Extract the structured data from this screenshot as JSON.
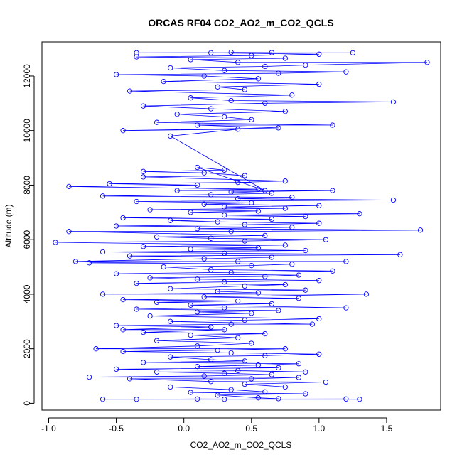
{
  "chart_data": {
    "type": "scatter",
    "title": "ORCAS RF04 CO2_AO2_m_CO2_QCLS",
    "xlabel": "CO2_AO2_m_CO2_QCLS",
    "ylabel": "Altitude (m)",
    "xlim": [
      -1.05,
      1.9
    ],
    "ylim": [
      -250,
      13250
    ],
    "xticks": [
      -1.0,
      -0.5,
      0.0,
      0.5,
      1.0,
      1.5
    ],
    "xtick_labels": [
      "-1.0",
      "-0.5",
      "0.0",
      "0.5",
      "1.0",
      "1.5"
    ],
    "yticks": [
      0,
      2000,
      4000,
      6000,
      8000,
      10000,
      12000
    ],
    "ytick_labels": [
      "0",
      "2000",
      "4000",
      "6000",
      "8000",
      "10000",
      "12000"
    ],
    "grid": false,
    "series": [
      {
        "color": "#0000ff",
        "marker": "open-circle",
        "connected": true,
        "points": [
          [
            -0.6,
            150
          ],
          [
            1.3,
            150
          ],
          [
            0.1,
            160
          ],
          [
            -0.35,
            150
          ],
          [
            1.2,
            160
          ],
          [
            0.3,
            150
          ],
          [
            0.7,
            170
          ],
          [
            0.55,
            200
          ],
          [
            0.25,
            300
          ],
          [
            0.9,
            350
          ],
          [
            0.05,
            400
          ],
          [
            0.6,
            420
          ],
          [
            0.35,
            500
          ],
          [
            -0.1,
            600
          ],
          [
            0.75,
            600
          ],
          [
            0.45,
            700
          ],
          [
            1.05,
            780
          ],
          [
            0.2,
            800
          ],
          [
            -0.4,
            900
          ],
          [
            0.5,
            900
          ],
          [
            0.85,
            950
          ],
          [
            -0.7,
            960
          ],
          [
            0.15,
            1000
          ],
          [
            0.65,
            1050
          ],
          [
            0.3,
            1100
          ],
          [
            -0.2,
            1150
          ],
          [
            0.9,
            1150
          ],
          [
            0.4,
            1200
          ],
          [
            -0.5,
            1250
          ],
          [
            0.7,
            1300
          ],
          [
            0.1,
            1350
          ],
          [
            0.55,
            1400
          ],
          [
            0.85,
            1450
          ],
          [
            -0.3,
            1500
          ],
          [
            0.45,
            1550
          ],
          [
            0.2,
            1600
          ],
          [
            -0.1,
            1700
          ],
          [
            0.6,
            1750
          ],
          [
            1.0,
            1800
          ],
          [
            0.35,
            1850
          ],
          [
            -0.45,
            1900
          ],
          [
            0.25,
            1950
          ],
          [
            0.75,
            2000
          ],
          [
            -0.65,
            2000
          ],
          [
            0.1,
            2100
          ],
          [
            0.5,
            2200
          ],
          [
            -0.2,
            2300
          ],
          [
            0.4,
            2400
          ],
          [
            0.05,
            2500
          ],
          [
            0.6,
            2550
          ],
          [
            -0.3,
            2600
          ],
          [
            0.3,
            2700
          ],
          [
            -0.45,
            2700
          ],
          [
            0.2,
            2800
          ],
          [
            -0.5,
            2850
          ],
          [
            0.35,
            2900
          ],
          [
            0.95,
            2900
          ],
          [
            -0.1,
            3000
          ],
          [
            0.45,
            3050
          ],
          [
            1.0,
            3100
          ],
          [
            -0.25,
            3200
          ],
          [
            0.5,
            3300
          ],
          [
            0.1,
            3350
          ],
          [
            0.7,
            3400
          ],
          [
            -0.35,
            3450
          ],
          [
            0.3,
            3500
          ],
          [
            1.2,
            3500
          ],
          [
            0.05,
            3600
          ],
          [
            0.65,
            3650
          ],
          [
            -0.2,
            3700
          ],
          [
            0.4,
            3750
          ],
          [
            -0.45,
            3800
          ],
          [
            0.85,
            3850
          ],
          [
            0.15,
            3900
          ],
          [
            1.35,
            4000
          ],
          [
            -0.6,
            4000
          ],
          [
            0.55,
            4050
          ],
          [
            0.25,
            4100
          ],
          [
            0.9,
            4150
          ],
          [
            -0.1,
            4200
          ],
          [
            0.45,
            4300
          ],
          [
            0.75,
            4350
          ],
          [
            -0.35,
            4400
          ],
          [
            0.3,
            4450
          ],
          [
            1.0,
            4500
          ],
          [
            0.1,
            4550
          ],
          [
            -0.25,
            4600
          ],
          [
            0.6,
            4650
          ],
          [
            0.85,
            4700
          ],
          [
            -0.5,
            4750
          ],
          [
            0.35,
            4800
          ],
          [
            1.1,
            4850
          ],
          [
            0.2,
            4900
          ],
          [
            -0.15,
            5000
          ],
          [
            0.5,
            5050
          ],
          [
            0.8,
            5100
          ],
          [
            -0.7,
            5150
          ],
          [
            0.4,
            5200
          ],
          [
            1.2,
            5200
          ],
          [
            -0.8,
            5200
          ],
          [
            0.15,
            5300
          ],
          [
            0.65,
            5350
          ],
          [
            -0.4,
            5400
          ],
          [
            1.6,
            5450
          ],
          [
            0.3,
            5500
          ],
          [
            -0.6,
            5550
          ],
          [
            0.9,
            5600
          ],
          [
            0.05,
            5650
          ],
          [
            0.55,
            5700
          ],
          [
            -0.3,
            5750
          ],
          [
            0.75,
            5800
          ],
          [
            -0.95,
            5900
          ],
          [
            0.45,
            5950
          ],
          [
            1.05,
            6000
          ],
          [
            0.2,
            6050
          ],
          [
            -0.2,
            6100
          ],
          [
            0.6,
            6150
          ],
          [
            -0.85,
            6300
          ],
          [
            0.35,
            6300
          ],
          [
            1.75,
            6350
          ],
          [
            0.1,
            6400
          ],
          [
            0.8,
            6450
          ],
          [
            -0.5,
            6500
          ],
          [
            0.45,
            6550
          ],
          [
            1.0,
            6600
          ],
          [
            0.25,
            6650
          ],
          [
            -0.1,
            6700
          ],
          [
            0.65,
            6750
          ],
          [
            -0.45,
            6800
          ],
          [
            0.9,
            6850
          ],
          [
            0.3,
            6900
          ],
          [
            1.3,
            6950
          ],
          [
            0.05,
            7000
          ],
          [
            0.55,
            7050
          ],
          [
            -0.25,
            7100
          ],
          [
            0.75,
            7150
          ],
          [
            0.3,
            7200
          ],
          [
            1.0,
            7250
          ],
          [
            0.15,
            7300
          ],
          [
            0.5,
            7350
          ],
          [
            -0.35,
            7400
          ],
          [
            1.55,
            7450
          ],
          [
            0.4,
            7500
          ],
          [
            0.8,
            7550
          ],
          [
            -0.6,
            7600
          ],
          [
            0.2,
            7650
          ],
          [
            0.65,
            7700
          ],
          [
            0.35,
            7750
          ],
          [
            1.1,
            7800
          ],
          [
            -0.05,
            7800
          ],
          [
            0.55,
            7850
          ],
          [
            -0.85,
            7950
          ],
          [
            0.1,
            8000
          ],
          [
            -0.55,
            8050
          ],
          [
            0.4,
            8100
          ],
          [
            0.75,
            8150
          ],
          [
            -0.3,
            8300
          ],
          [
            0.45,
            8350
          ],
          [
            0.15,
            8450
          ],
          [
            -0.3,
            8500
          ],
          [
            0.3,
            8550
          ],
          [
            0.1,
            8650
          ],
          [
            0.6,
            7800
          ],
          [
            -0.1,
            9800
          ],
          [
            0.4,
            10050
          ],
          [
            -0.45,
            10000
          ],
          [
            0.7,
            10100
          ],
          [
            0.1,
            10200
          ],
          [
            1.1,
            10200
          ],
          [
            -0.2,
            10300
          ],
          [
            0.5,
            10400
          ],
          [
            0.3,
            10500
          ],
          [
            -0.05,
            10600
          ],
          [
            0.75,
            10700
          ],
          [
            0.2,
            10800
          ],
          [
            -0.3,
            10900
          ],
          [
            0.6,
            11000
          ],
          [
            1.55,
            11050
          ],
          [
            0.35,
            11100
          ],
          [
            0.05,
            11200
          ],
          [
            0.8,
            11300
          ],
          [
            -0.4,
            11450
          ],
          [
            0.45,
            11500
          ],
          [
            0.25,
            11600
          ],
          [
            1.0,
            11700
          ],
          [
            -0.15,
            11800
          ],
          [
            0.55,
            11900
          ],
          [
            0.15,
            12000
          ],
          [
            -0.5,
            12050
          ],
          [
            0.7,
            12100
          ],
          [
            1.2,
            12150
          ],
          [
            0.3,
            12200
          ],
          [
            -0.1,
            12300
          ],
          [
            0.6,
            12350
          ],
          [
            0.9,
            12400
          ],
          [
            1.8,
            12500
          ],
          [
            0.4,
            12500
          ],
          [
            0.05,
            12600
          ],
          [
            0.75,
            12650
          ],
          [
            -0.35,
            12700
          ],
          [
            0.5,
            12750
          ],
          [
            1.0,
            12800
          ],
          [
            0.2,
            12850
          ],
          [
            1.25,
            12850
          ],
          [
            -0.35,
            12850
          ],
          [
            0.65,
            12860
          ],
          [
            0.35,
            12870
          ]
        ]
      }
    ]
  }
}
